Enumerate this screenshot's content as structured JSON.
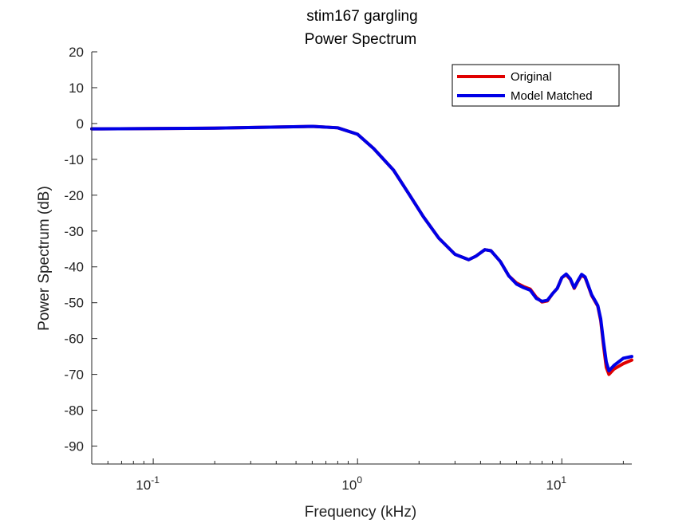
{
  "chart_data": {
    "type": "line",
    "title": "stim167 gargling",
    "subtitle": "Power Spectrum",
    "xlabel": "Frequency (kHz)",
    "ylabel": "Power Spectrum (dB)",
    "x_scale": "log",
    "xlim": [
      0.05,
      22
    ],
    "ylim": [
      -95,
      20
    ],
    "grid": false,
    "legend_position": "top-right",
    "y_ticks": [
      20,
      10,
      0,
      -10,
      -20,
      -30,
      -40,
      -50,
      -60,
      -70,
      -80,
      -90
    ],
    "x_ticks": [
      {
        "value": 0.1,
        "base": "10",
        "exp": "-1"
      },
      {
        "value": 1,
        "base": "10",
        "exp": "0"
      },
      {
        "value": 10,
        "base": "10",
        "exp": "1"
      }
    ],
    "series": [
      {
        "name": "Original",
        "color": "#e00000",
        "x": [
          0.05,
          0.1,
          0.2,
          0.4,
          0.6,
          0.8,
          1.0,
          1.2,
          1.5,
          1.8,
          2.1,
          2.5,
          3.0,
          3.5,
          3.8,
          4.2,
          4.5,
          5.0,
          5.5,
          6.0,
          6.5,
          7.0,
          7.5,
          8.0,
          8.5,
          9.0,
          9.5,
          10.0,
          10.5,
          11.0,
          11.5,
          12.0,
          12.5,
          13.0,
          13.5,
          14.0,
          14.5,
          15.0,
          15.5,
          16.0,
          16.5,
          17.0,
          18.0,
          20.0,
          22.0
        ],
        "y": [
          -1.5,
          -1.4,
          -1.3,
          -1.0,
          -0.8,
          -1.2,
          -3,
          -7,
          -13,
          -20,
          -26,
          -32,
          -36.5,
          -38,
          -37,
          -35.2,
          -35.5,
          -38.5,
          -42.5,
          -44.5,
          -45.5,
          -46.2,
          -48.5,
          -49.8,
          -49.5,
          -47.5,
          -46,
          -43,
          -42.2,
          -43.5,
          -46,
          -44,
          -42.3,
          -43,
          -45.5,
          -48,
          -49.5,
          -51,
          -55,
          -62,
          -68,
          -70,
          -68.5,
          -67,
          -66
        ]
      },
      {
        "name": "Model Matched",
        "color": "#0000e6",
        "x": [
          0.05,
          0.1,
          0.2,
          0.4,
          0.6,
          0.8,
          1.0,
          1.2,
          1.5,
          1.8,
          2.1,
          2.5,
          3.0,
          3.5,
          3.8,
          4.2,
          4.5,
          5.0,
          5.5,
          6.0,
          6.5,
          7.0,
          7.5,
          8.0,
          8.5,
          9.0,
          9.5,
          10.0,
          10.5,
          11.0,
          11.5,
          12.0,
          12.5,
          13.0,
          13.5,
          14.0,
          14.5,
          15.0,
          15.5,
          16.0,
          16.5,
          17.0,
          18.0,
          20.0,
          22.0
        ],
        "y": [
          -1.5,
          -1.4,
          -1.3,
          -1.0,
          -0.8,
          -1.2,
          -3,
          -7,
          -13,
          -20,
          -26,
          -32,
          -36.5,
          -38,
          -37,
          -35.2,
          -35.5,
          -38.5,
          -42.5,
          -44.8,
          -45.8,
          -46.5,
          -48.8,
          -49.6,
          -49.3,
          -47.5,
          -46,
          -43,
          -42,
          -43.3,
          -45.8,
          -43.8,
          -42.1,
          -42.8,
          -45.3,
          -47.8,
          -49.3,
          -50.8,
          -54.5,
          -61,
          -66.5,
          -69,
          -67.5,
          -65.5,
          -65
        ]
      }
    ]
  }
}
